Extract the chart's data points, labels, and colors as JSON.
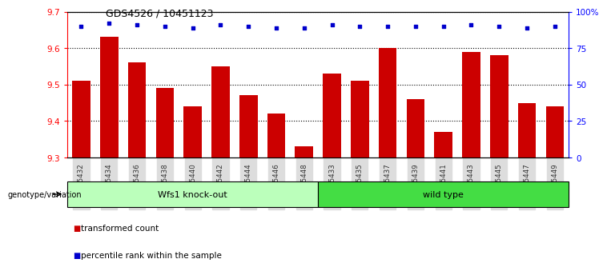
{
  "title": "GDS4526 / 10451123",
  "samples": [
    "GSM825432",
    "GSM825434",
    "GSM825436",
    "GSM825438",
    "GSM825440",
    "GSM825442",
    "GSM825444",
    "GSM825446",
    "GSM825448",
    "GSM825433",
    "GSM825435",
    "GSM825437",
    "GSM825439",
    "GSM825441",
    "GSM825443",
    "GSM825445",
    "GSM825447",
    "GSM825449"
  ],
  "bar_values": [
    9.51,
    9.63,
    9.56,
    9.49,
    9.44,
    9.55,
    9.47,
    9.42,
    9.33,
    9.53,
    9.51,
    9.6,
    9.46,
    9.37,
    9.59,
    9.58,
    9.45,
    9.44
  ],
  "percentile_values": [
    90,
    92,
    91,
    90,
    89,
    91,
    90,
    89,
    89,
    91,
    90,
    90,
    90,
    90,
    91,
    90,
    89,
    90
  ],
  "bar_color": "#cc0000",
  "dot_color": "#0000cc",
  "ylim_left": [
    9.3,
    9.7
  ],
  "ylim_right": [
    0,
    100
  ],
  "yticks_left": [
    9.3,
    9.4,
    9.5,
    9.6,
    9.7
  ],
  "yticks_right": [
    0,
    25,
    50,
    75,
    100
  ],
  "ytick_labels_right": [
    "0",
    "25",
    "50",
    "75",
    "100%"
  ],
  "group1_label": "Wfs1 knock-out",
  "group2_label": "wild type",
  "group1_color": "#bbffbb",
  "group2_color": "#44dd44",
  "group1_count": 9,
  "group2_count": 9,
  "xlabel_left": "genotype/variation",
  "legend_bar_label": "transformed count",
  "legend_dot_label": "percentile rank within the sample"
}
